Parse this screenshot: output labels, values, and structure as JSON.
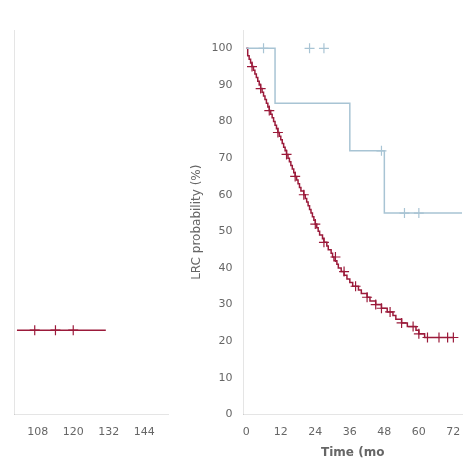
{
  "chart_data": [
    {
      "type": "line",
      "xlim": [
        100,
        152
      ],
      "xticks": [
        108,
        120,
        132,
        144
      ],
      "ylim": [
        0,
        105
      ],
      "tick_labels": "x",
      "grid": false,
      "series": [
        {
          "type": "line",
          "line_style": "solid",
          "color": "#9b1a3a",
          "x": [
            101,
            131
          ],
          "values": [
            23,
            23
          ]
        },
        {
          "type": "scatter",
          "marker": "+",
          "color": "#9b1a3a",
          "x": [
            107,
            114,
            120
          ],
          "values": [
            23,
            23,
            23
          ]
        }
      ]
    },
    {
      "type": "line",
      "xlabel": "Time (mo",
      "ylabel": "LRC probability (%)",
      "xlim": [
        -1,
        75
      ],
      "xticks": [
        0,
        12,
        24,
        36,
        48,
        60,
        72
      ],
      "ylim": [
        0,
        105
      ],
      "yticks": [
        0,
        10,
        20,
        30,
        40,
        50,
        60,
        70,
        80,
        90,
        100
      ],
      "grid": false,
      "series": [
        {
          "type": "line",
          "line_style": "step",
          "color": "#a8c4d4",
          "x": [
            0,
            10,
            10,
            36,
            36,
            48,
            48,
            57,
            57,
            75
          ],
          "values": [
            100,
            100,
            85,
            85,
            72,
            72,
            55,
            55,
            55,
            55
          ]
        },
        {
          "type": "scatter",
          "marker": "+",
          "color": "#a8c4d4",
          "x": [
            6,
            22,
            27,
            47,
            55,
            60
          ],
          "values": [
            100,
            100,
            100,
            72,
            55,
            55
          ]
        },
        {
          "type": "line",
          "line_style": "step",
          "color": "#9b1a3a",
          "x": [
            0,
            0.5,
            1,
            1.5,
            2,
            2.5,
            3,
            3.5,
            4,
            4.5,
            5,
            5.5,
            6,
            6.5,
            7,
            7.5,
            8,
            8.5,
            9,
            9.5,
            10,
            10.5,
            11,
            11.5,
            12,
            12.5,
            13,
            13.5,
            14,
            14.5,
            15,
            15.5,
            16,
            16.5,
            17,
            17.5,
            18,
            18.5,
            19,
            19.5,
            20,
            20.5,
            21,
            21.5,
            22,
            22.5,
            23,
            23.5,
            24,
            24.5,
            25,
            25.5,
            26,
            26.5,
            27,
            27.5,
            28,
            28.5,
            29,
            29.5,
            30,
            30.5,
            31,
            31.5,
            32,
            33,
            34,
            35,
            36,
            37,
            38,
            39,
            40,
            41,
            42,
            43,
            44,
            45,
            46,
            47,
            48,
            49,
            50,
            51,
            52,
            53,
            54,
            55,
            56,
            57,
            58,
            59,
            60,
            61,
            62,
            63,
            64,
            65,
            66,
            67,
            68,
            69,
            70,
            71,
            72
          ],
          "values": [
            100,
            98,
            97,
            96,
            95,
            94,
            93,
            92,
            91,
            90,
            89,
            88,
            87,
            86,
            85,
            84,
            83,
            82,
            81,
            80,
            79,
            78,
            77,
            76,
            75,
            74,
            73,
            72,
            71,
            70,
            69,
            68,
            67,
            66,
            65,
            64,
            63,
            62,
            61,
            61,
            60,
            59,
            58,
            57,
            56,
            55,
            54,
            53,
            52,
            51,
            50,
            49,
            49,
            48,
            47,
            47,
            46,
            45,
            45,
            44,
            43,
            42,
            42,
            41,
            40,
            39,
            38,
            37,
            36,
            35,
            35,
            34,
            33,
            33,
            32,
            31,
            31,
            30,
            30,
            29,
            29,
            28,
            28,
            27,
            26,
            26,
            25,
            25,
            24,
            24,
            24,
            23,
            22,
            22,
            21,
            21,
            21,
            21,
            21,
            21,
            21,
            21,
            21,
            21,
            21
          ]
        },
        {
          "type": "scatter",
          "marker": "+",
          "color": "#9b1a3a",
          "x": [
            2,
            5,
            8,
            11,
            14,
            17,
            20,
            24,
            27,
            31,
            34,
            38,
            42,
            45,
            47,
            50,
            54,
            58,
            60,
            63,
            67,
            70,
            72
          ],
          "values": [
            95,
            89,
            83,
            77,
            71,
            65,
            60,
            52,
            47,
            43,
            39,
            35,
            32,
            30,
            29,
            28,
            25,
            24,
            22,
            21,
            21,
            21,
            21
          ]
        }
      ]
    }
  ]
}
